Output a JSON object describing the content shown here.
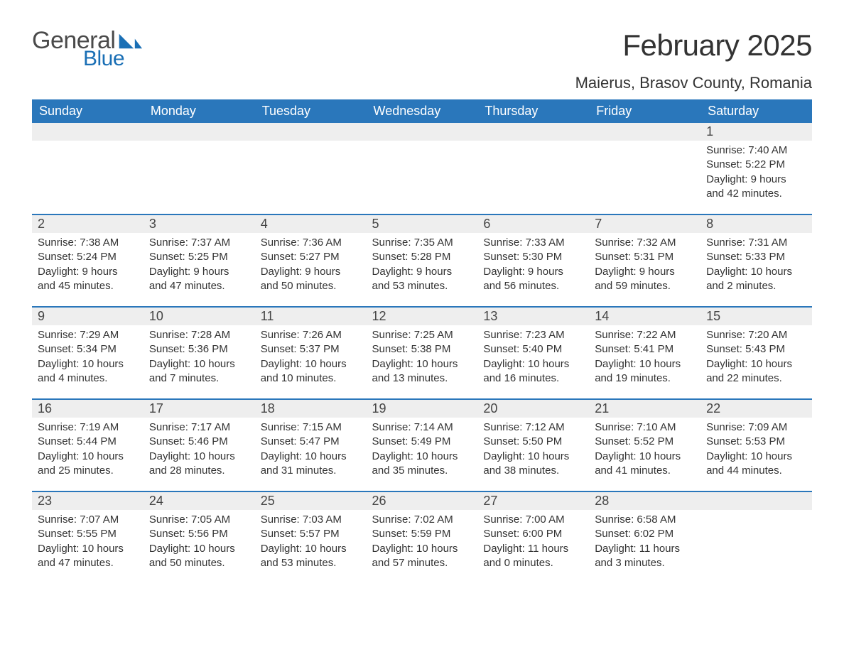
{
  "brand": {
    "part1": "General",
    "part2": "Blue",
    "logo_color": "#1a6fb5",
    "text_color": "#4a4a4a"
  },
  "title": "February 2025",
  "location": "Maierus, Brasov County, Romania",
  "colors": {
    "header_bg": "#2a77bb",
    "header_text": "#ffffff",
    "dayhead_bg": "#eeeeee",
    "body_text": "#333333",
    "page_bg": "#ffffff"
  },
  "weekdays": [
    "Sunday",
    "Monday",
    "Tuesday",
    "Wednesday",
    "Thursday",
    "Friday",
    "Saturday"
  ],
  "weeks": [
    [
      null,
      null,
      null,
      null,
      null,
      null,
      {
        "n": "1",
        "sunrise": "Sunrise: 7:40 AM",
        "sunset": "Sunset: 5:22 PM",
        "daylight": "Daylight: 9 hours and 42 minutes."
      }
    ],
    [
      {
        "n": "2",
        "sunrise": "Sunrise: 7:38 AM",
        "sunset": "Sunset: 5:24 PM",
        "daylight": "Daylight: 9 hours and 45 minutes."
      },
      {
        "n": "3",
        "sunrise": "Sunrise: 7:37 AM",
        "sunset": "Sunset: 5:25 PM",
        "daylight": "Daylight: 9 hours and 47 minutes."
      },
      {
        "n": "4",
        "sunrise": "Sunrise: 7:36 AM",
        "sunset": "Sunset: 5:27 PM",
        "daylight": "Daylight: 9 hours and 50 minutes."
      },
      {
        "n": "5",
        "sunrise": "Sunrise: 7:35 AM",
        "sunset": "Sunset: 5:28 PM",
        "daylight": "Daylight: 9 hours and 53 minutes."
      },
      {
        "n": "6",
        "sunrise": "Sunrise: 7:33 AM",
        "sunset": "Sunset: 5:30 PM",
        "daylight": "Daylight: 9 hours and 56 minutes."
      },
      {
        "n": "7",
        "sunrise": "Sunrise: 7:32 AM",
        "sunset": "Sunset: 5:31 PM",
        "daylight": "Daylight: 9 hours and 59 minutes."
      },
      {
        "n": "8",
        "sunrise": "Sunrise: 7:31 AM",
        "sunset": "Sunset: 5:33 PM",
        "daylight": "Daylight: 10 hours and 2 minutes."
      }
    ],
    [
      {
        "n": "9",
        "sunrise": "Sunrise: 7:29 AM",
        "sunset": "Sunset: 5:34 PM",
        "daylight": "Daylight: 10 hours and 4 minutes."
      },
      {
        "n": "10",
        "sunrise": "Sunrise: 7:28 AM",
        "sunset": "Sunset: 5:36 PM",
        "daylight": "Daylight: 10 hours and 7 minutes."
      },
      {
        "n": "11",
        "sunrise": "Sunrise: 7:26 AM",
        "sunset": "Sunset: 5:37 PM",
        "daylight": "Daylight: 10 hours and 10 minutes."
      },
      {
        "n": "12",
        "sunrise": "Sunrise: 7:25 AM",
        "sunset": "Sunset: 5:38 PM",
        "daylight": "Daylight: 10 hours and 13 minutes."
      },
      {
        "n": "13",
        "sunrise": "Sunrise: 7:23 AM",
        "sunset": "Sunset: 5:40 PM",
        "daylight": "Daylight: 10 hours and 16 minutes."
      },
      {
        "n": "14",
        "sunrise": "Sunrise: 7:22 AM",
        "sunset": "Sunset: 5:41 PM",
        "daylight": "Daylight: 10 hours and 19 minutes."
      },
      {
        "n": "15",
        "sunrise": "Sunrise: 7:20 AM",
        "sunset": "Sunset: 5:43 PM",
        "daylight": "Daylight: 10 hours and 22 minutes."
      }
    ],
    [
      {
        "n": "16",
        "sunrise": "Sunrise: 7:19 AM",
        "sunset": "Sunset: 5:44 PM",
        "daylight": "Daylight: 10 hours and 25 minutes."
      },
      {
        "n": "17",
        "sunrise": "Sunrise: 7:17 AM",
        "sunset": "Sunset: 5:46 PM",
        "daylight": "Daylight: 10 hours and 28 minutes."
      },
      {
        "n": "18",
        "sunrise": "Sunrise: 7:15 AM",
        "sunset": "Sunset: 5:47 PM",
        "daylight": "Daylight: 10 hours and 31 minutes."
      },
      {
        "n": "19",
        "sunrise": "Sunrise: 7:14 AM",
        "sunset": "Sunset: 5:49 PM",
        "daylight": "Daylight: 10 hours and 35 minutes."
      },
      {
        "n": "20",
        "sunrise": "Sunrise: 7:12 AM",
        "sunset": "Sunset: 5:50 PM",
        "daylight": "Daylight: 10 hours and 38 minutes."
      },
      {
        "n": "21",
        "sunrise": "Sunrise: 7:10 AM",
        "sunset": "Sunset: 5:52 PM",
        "daylight": "Daylight: 10 hours and 41 minutes."
      },
      {
        "n": "22",
        "sunrise": "Sunrise: 7:09 AM",
        "sunset": "Sunset: 5:53 PM",
        "daylight": "Daylight: 10 hours and 44 minutes."
      }
    ],
    [
      {
        "n": "23",
        "sunrise": "Sunrise: 7:07 AM",
        "sunset": "Sunset: 5:55 PM",
        "daylight": "Daylight: 10 hours and 47 minutes."
      },
      {
        "n": "24",
        "sunrise": "Sunrise: 7:05 AM",
        "sunset": "Sunset: 5:56 PM",
        "daylight": "Daylight: 10 hours and 50 minutes."
      },
      {
        "n": "25",
        "sunrise": "Sunrise: 7:03 AM",
        "sunset": "Sunset: 5:57 PM",
        "daylight": "Daylight: 10 hours and 53 minutes."
      },
      {
        "n": "26",
        "sunrise": "Sunrise: 7:02 AM",
        "sunset": "Sunset: 5:59 PM",
        "daylight": "Daylight: 10 hours and 57 minutes."
      },
      {
        "n": "27",
        "sunrise": "Sunrise: 7:00 AM",
        "sunset": "Sunset: 6:00 PM",
        "daylight": "Daylight: 11 hours and 0 minutes."
      },
      {
        "n": "28",
        "sunrise": "Sunrise: 6:58 AM",
        "sunset": "Sunset: 6:02 PM",
        "daylight": "Daylight: 11 hours and 3 minutes."
      },
      null
    ]
  ]
}
